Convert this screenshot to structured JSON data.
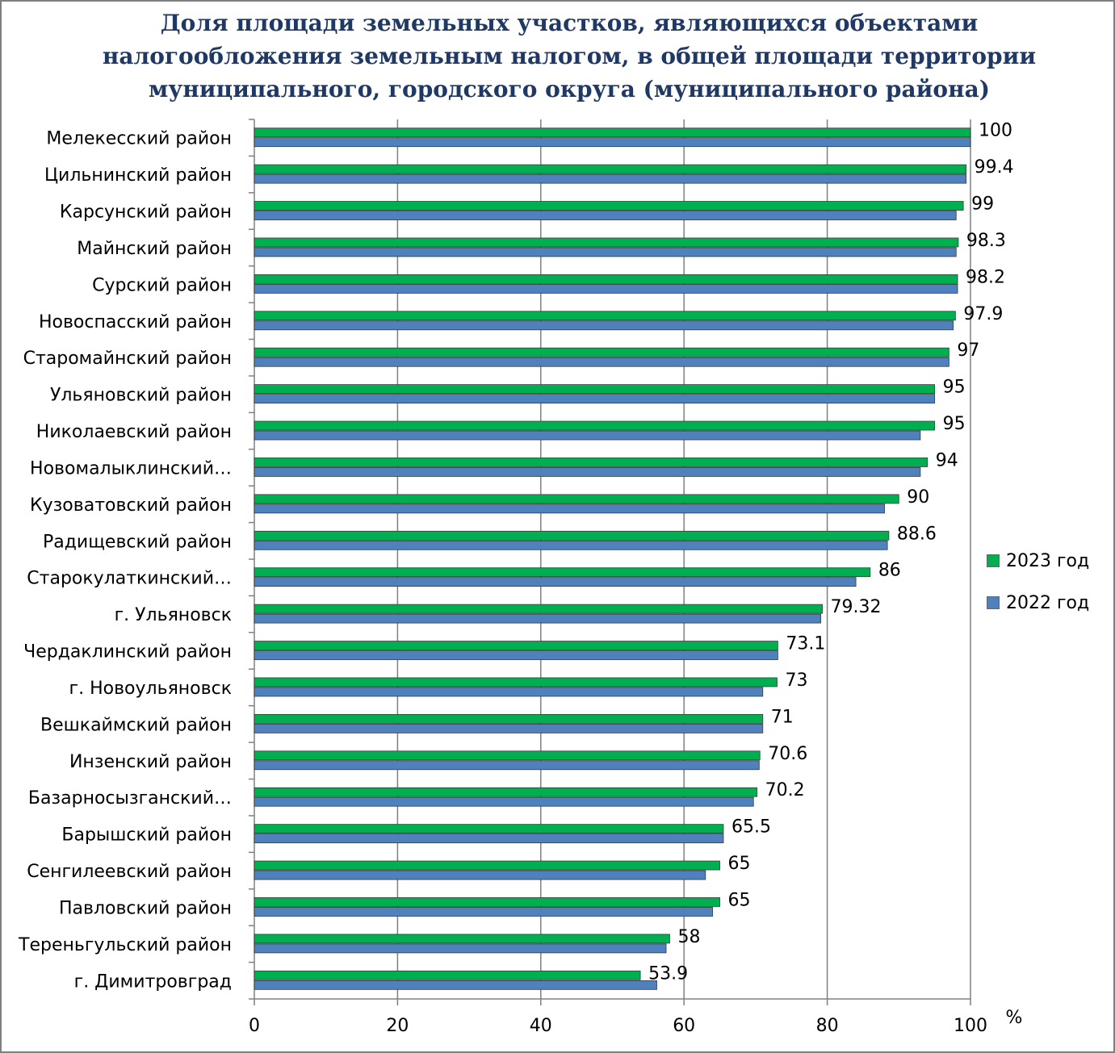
{
  "chart_data": {
    "type": "bar",
    "orientation": "horizontal",
    "title_lines": [
      "Доля площади земельных участков, являющихся объектами",
      "налогообложения земельным налогом, в общей площади территории",
      "муниципального, городского округа (муниципального района)"
    ],
    "unit_label": "%",
    "xlim": [
      0,
      100
    ],
    "ticks": [
      "0",
      "20",
      "40",
      "60",
      "80",
      "100"
    ],
    "grid": true,
    "legend_position": "right",
    "categories": [
      "Мелекесский район",
      "Цильнинский район",
      "Карсунский район",
      "Майнский район",
      "Сурский район",
      "Новоспасский район",
      "Старомайнский район",
      "Ульяновский район",
      "Николаевский район",
      "Новомалыклинский…",
      "Кузоватовский район",
      "Радищевский район",
      "Старокулаткинский…",
      "г. Ульяновск",
      "Чердаклинский район",
      "г. Новоульяновск",
      "Вешкаймский район",
      "Инзенский район",
      "Базарносызганский…",
      "Барышский район",
      "Сенгилеевский район",
      "Павловский район",
      "Тереньгульский район",
      "г. Димитровград"
    ],
    "series": [
      {
        "name": "2023 год",
        "color": "#00b050",
        "values": [
          100,
          99.4,
          99,
          98.3,
          98.2,
          97.9,
          97,
          95,
          95,
          94,
          90,
          88.6,
          86,
          79.32,
          73.1,
          73,
          71,
          70.6,
          70.2,
          65.5,
          65,
          65,
          58,
          53.9
        ],
        "labels": [
          "100",
          "99.4",
          "99",
          "98.3",
          "98.2",
          "97.9",
          "97",
          "95",
          "95",
          "94",
          "90",
          "88.6",
          "86",
          "79.32",
          "73.1",
          "73",
          "71",
          "70.6",
          "70.2",
          "65.5",
          "65",
          "65",
          "58",
          "53.9"
        ]
      },
      {
        "name": "2022 год",
        "color": "#4f81bd",
        "values": [
          100,
          99.4,
          98,
          98,
          98.2,
          97.6,
          97,
          95,
          93,
          93,
          88,
          88.4,
          84,
          79.1,
          73.1,
          71,
          71,
          70.5,
          69.7,
          65.5,
          63,
          64,
          57.5,
          56.2
        ]
      }
    ]
  }
}
